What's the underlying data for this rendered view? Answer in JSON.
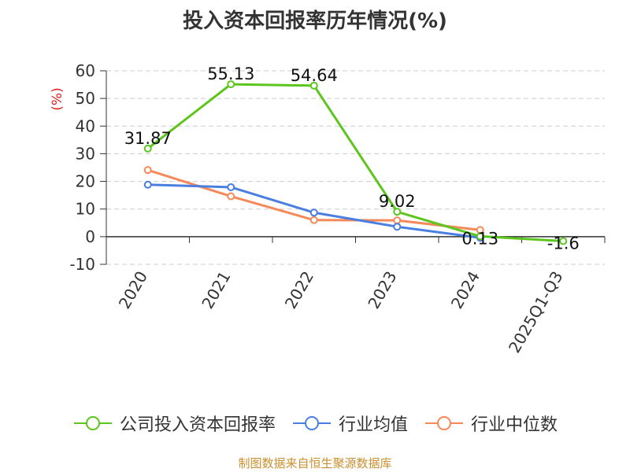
{
  "title": "投入资本回报率历年情况(%)",
  "source": "制图数据来自恒生聚源数据库",
  "chart_data": {
    "type": "line",
    "categories": [
      "2020",
      "2021",
      "2022",
      "2023",
      "2024",
      "2025Q1-Q3"
    ],
    "ylabel": "(%)",
    "ylim": [
      -10,
      60
    ],
    "yticks": [
      -10,
      0,
      10,
      20,
      30,
      40,
      50,
      60
    ],
    "grid": true,
    "legend_position": "bottom",
    "series": [
      {
        "name": "公司投入资本回报率",
        "color": "#5cc61f",
        "values": [
          31.87,
          55.13,
          54.64,
          9.02,
          0.13,
          -1.6
        ],
        "labels": [
          "31.87",
          "55.13",
          "54.64",
          "9.02",
          "0.13",
          "-1.6"
        ]
      },
      {
        "name": "行业均值",
        "color": "#4a7ee0",
        "values": [
          18.8,
          17.9,
          8.7,
          3.6,
          -0.4,
          null
        ]
      },
      {
        "name": "行业中位数",
        "color": "#f5895a",
        "values": [
          24.1,
          14.6,
          6.0,
          5.9,
          2.4,
          null
        ]
      }
    ]
  }
}
